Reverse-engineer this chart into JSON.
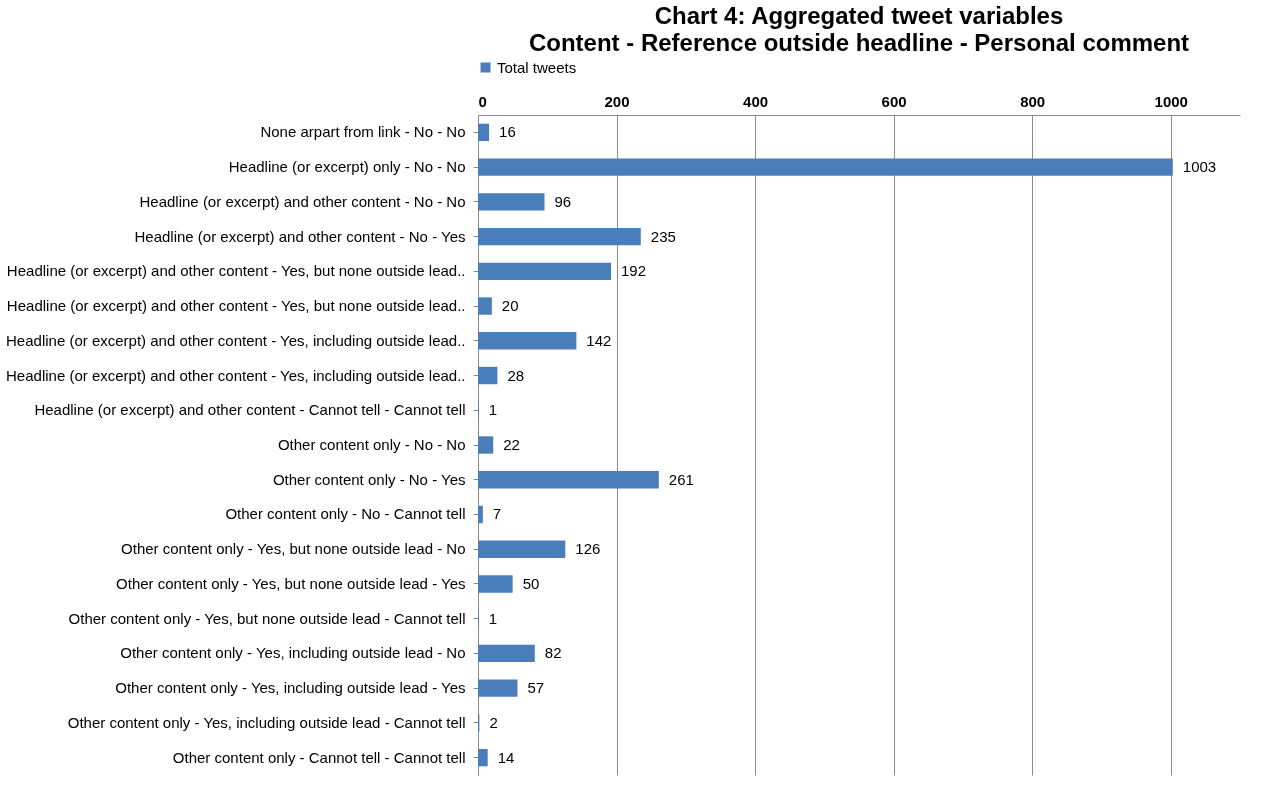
{
  "chart_data": {
    "type": "bar",
    "orientation": "horizontal",
    "title": "Chart 4: Aggregated tweet variables",
    "subtitle": "Content - Reference outside headline - Personal comment",
    "categories": [
      "None arpart from link - No - No",
      "Headline (or excerpt) only - No - No",
      "Headline (or excerpt) and other content - No - No",
      "Headline (or excerpt) and other content - No - Yes",
      "Headline (or excerpt) and other content - Yes, but none outside lead..",
      "Headline (or excerpt) and other content - Yes, but none outside lead..",
      "Headline (or excerpt) and other content - Yes, including outside lead..",
      "Headline (or excerpt) and other content - Yes, including outside lead..",
      "Headline (or excerpt) and other content - Cannot tell - Cannot tell",
      "Other content only - No - No",
      "Other content only - No - Yes",
      "Other content only - No - Cannot tell",
      "Other content only - Yes, but none outside lead - No",
      "Other content only - Yes, but none outside lead - Yes",
      "Other content only - Yes, but none outside lead - Cannot tell",
      "Other content only - Yes, including outside lead - No",
      "Other content only - Yes, including outside lead - Yes",
      "Other content only - Yes, including outside lead - Cannot tell",
      "Other content only - Cannot tell - Cannot tell"
    ],
    "series": [
      {
        "name": "Total tweets",
        "color": "#4a7ebb",
        "values": [
          16,
          1003,
          96,
          235,
          192,
          20,
          142,
          28,
          1,
          22,
          261,
          7,
          126,
          50,
          1,
          82,
          57,
          2,
          14
        ]
      }
    ],
    "xlim": [
      0,
      1100
    ],
    "xticks": [
      0,
      200,
      400,
      600,
      800,
      1000
    ],
    "grid": "x",
    "legend": "top",
    "data_labels": true
  }
}
